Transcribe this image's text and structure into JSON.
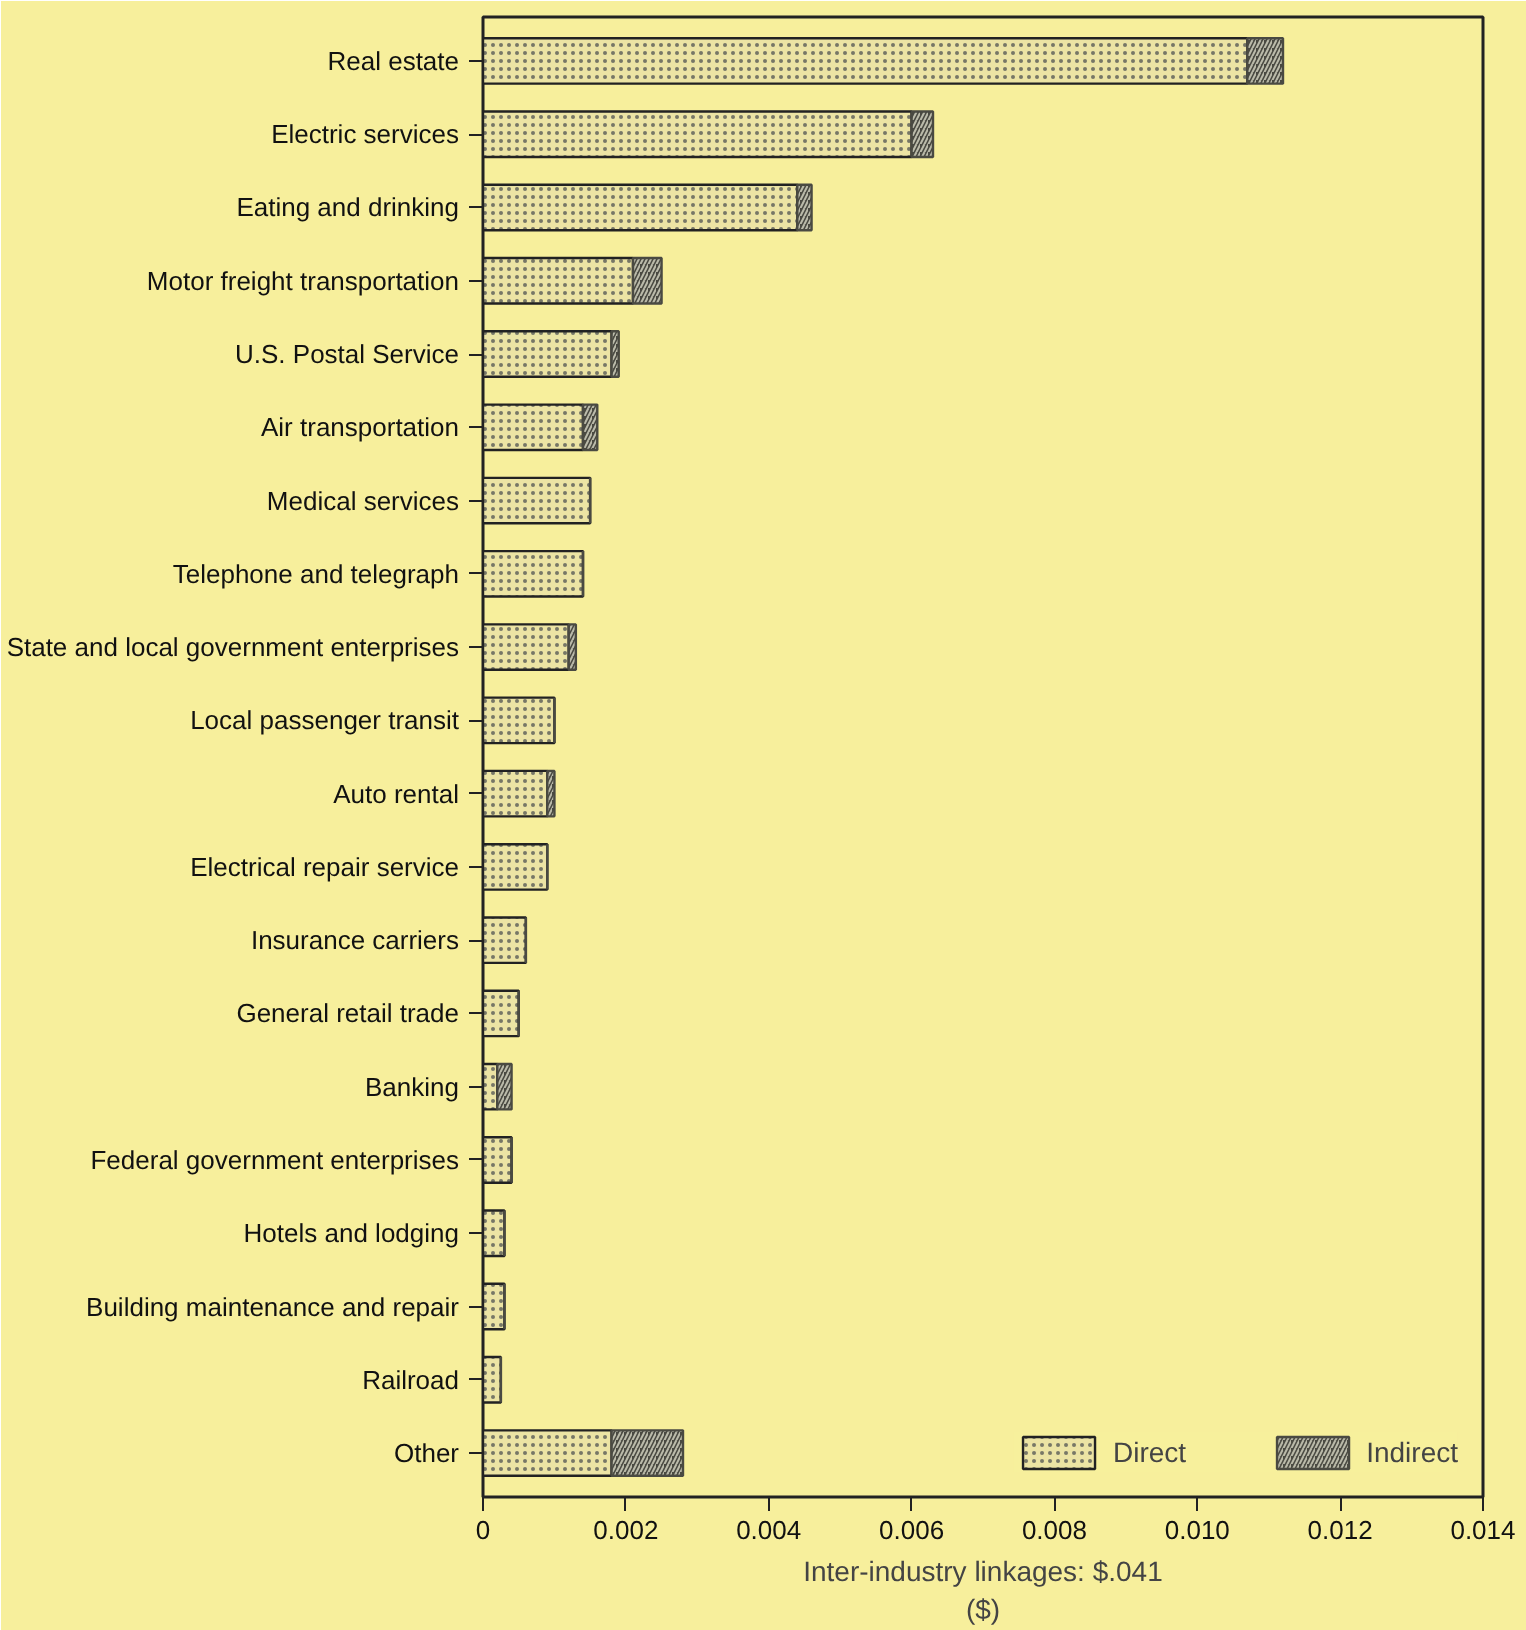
{
  "chart_data": {
    "type": "bar",
    "orientation": "horizontal",
    "stacked": true,
    "categories": [
      "Real estate",
      "Electric services",
      "Eating and drinking",
      "Motor freight transportation",
      "U.S. Postal Service",
      "Air transportation",
      "Medical services",
      "Telephone and telegraph",
      "State and local government enterprises",
      "Local passenger transit",
      "Auto rental",
      "Electrical repair service",
      "Insurance carriers",
      "General retail trade",
      "Banking",
      "Federal government enterprises",
      "Hotels and lodging",
      "Building maintenance and repair",
      "Railroad",
      "Other"
    ],
    "series": [
      {
        "name": "Direct",
        "color": "#ece4a4",
        "values": [
          0.0107,
          0.006,
          0.0044,
          0.0021,
          0.0018,
          0.0014,
          0.0015,
          0.0014,
          0.0012,
          0.001,
          0.0009,
          0.0009,
          0.0006,
          0.0005,
          0.0002,
          0.0004,
          0.0003,
          0.0003,
          0.00025,
          0.0018
        ]
      },
      {
        "name": "Indirect",
        "color": "#4a4a42",
        "values": [
          0.0005,
          0.0003,
          0.0002,
          0.0004,
          0.0001,
          0.0002,
          0,
          0,
          0.0001,
          0,
          0.0001,
          0,
          0,
          0,
          0.0002,
          0,
          0,
          0,
          0,
          0.001
        ]
      }
    ],
    "xlabel": "Inter-industry linkages: $.041\n($)",
    "xlim": [
      0,
      0.014
    ],
    "xticks": [
      0,
      {
        "value": 0.002,
        "label": "0.002"
      },
      {
        "value": 0.004,
        "label": "0.004"
      },
      {
        "value": 0.006,
        "label": "0.006"
      },
      {
        "value": 0.008,
        "label": "0.008"
      },
      {
        "value": 0.01,
        "label": "0.010"
      },
      {
        "value": 0.012,
        "label": "0.012"
      },
      {
        "value": 0.014,
        "label": "0.014"
      }
    ],
    "legend": "bottom right",
    "grid": false
  }
}
